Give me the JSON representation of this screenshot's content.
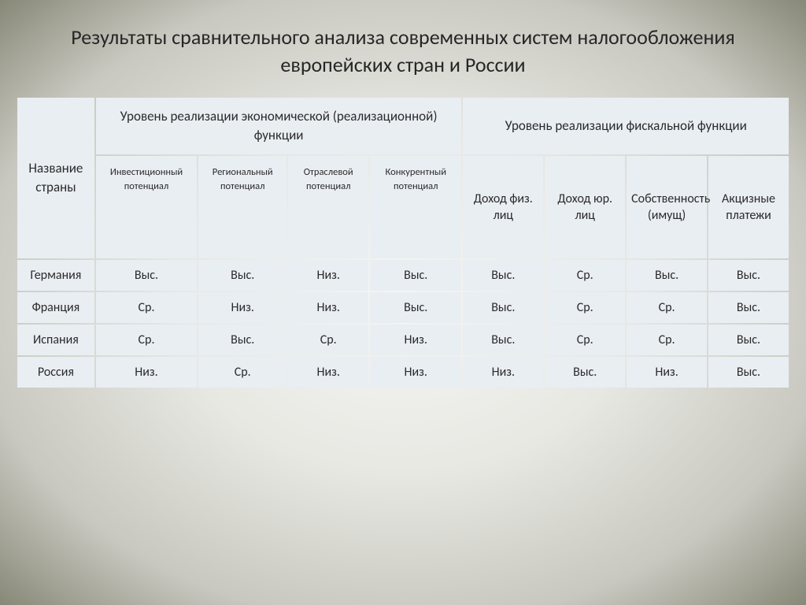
{
  "title": "Результаты сравнительного анализа современных систем налогообложения европейских стран и России",
  "table": {
    "header_row1": {
      "c0": "Название страны",
      "group1": "Уровень реализации экономической (реализационной) функции",
      "group2": "Уровень реализации фискальной функции"
    },
    "header_row2": {
      "c1": "Инвестиционный потенциал",
      "c2": "Региональный потенциал",
      "c3": "Отраслевой потенциал",
      "c4": "Конкурентный потенциал",
      "c5": "Доход физ. лиц",
      "c6": "Доход юр. лиц",
      "c7": "Собственность (имущ)",
      "c8": "Акцизные платежи"
    },
    "rows": [
      {
        "country": "Германия",
        "v": [
          "Выс.",
          "Выс.",
          "Низ.",
          "Выс.",
          "Выс.",
          "Ср.",
          "Выс.",
          "Выс."
        ]
      },
      {
        "country": "Франция",
        "v": [
          "Ср.",
          "Низ.",
          "Низ.",
          "Выс.",
          "Выс.",
          "Ср.",
          "Ср.",
          "Выс."
        ]
      },
      {
        "country": "Испания",
        "v": [
          "Ср.",
          "Выс.",
          "Ср.",
          "Низ.",
          "Выс.",
          "Ср.",
          "Ср.",
          "Выс."
        ]
      },
      {
        "country": "Россия",
        "v": [
          "Низ.",
          "Ср.",
          "Низ.",
          "Низ.",
          "Низ.",
          "Выс.",
          "Низ.",
          "Выс."
        ]
      }
    ]
  },
  "style": {
    "cell_bg": "#e9eef3",
    "text_color": "#2b2b2b",
    "title_fontsize": 26,
    "hdr1_fontsize": 17,
    "hdr2_fontsize_small": 12.5,
    "hdr2_fontsize_large": 16,
    "data_fontsize": 16,
    "border_spacing": 2,
    "background_gradient": [
      "#f5f5f2",
      "#e8e8e3",
      "#c8c8c0",
      "#888878"
    ]
  }
}
